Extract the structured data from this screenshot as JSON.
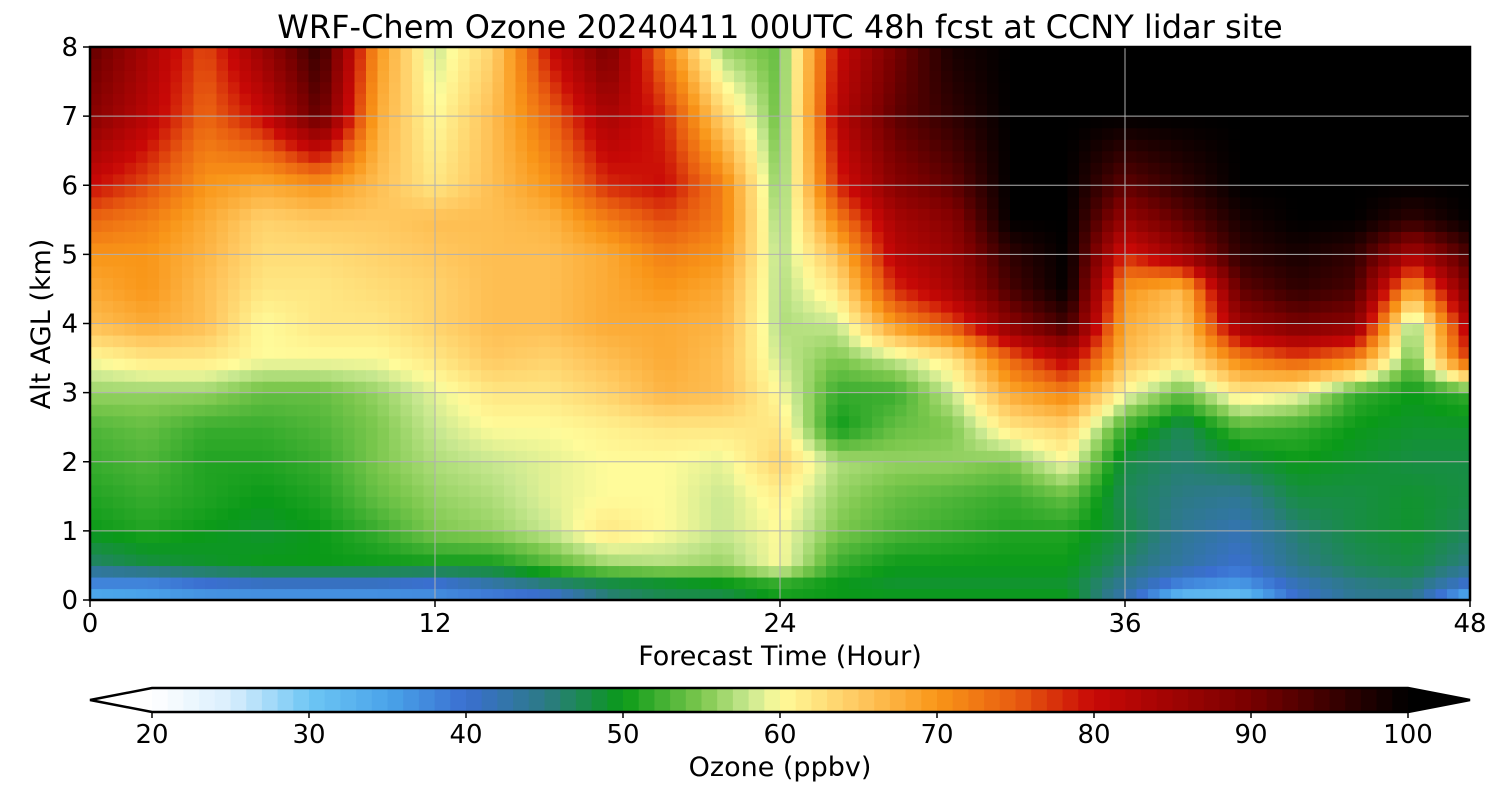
{
  "chart_data": {
    "type": "heatmap",
    "title": "WRF-Chem Ozone  20240411 00UTC 48h fcst at CCNY lidar site",
    "xlabel": "Forecast Time (Hour)",
    "ylabel": "Alt AGL (km)",
    "xlim": [
      0,
      48
    ],
    "ylim": [
      0,
      8
    ],
    "xticks": [
      "0",
      "12",
      "24",
      "36",
      "48"
    ],
    "yticks": [
      "0",
      "1",
      "2",
      "3",
      "4",
      "5",
      "6",
      "7",
      "8"
    ],
    "grid": true,
    "x": [
      0,
      2,
      4,
      6,
      8,
      10,
      12,
      14,
      16,
      18,
      20,
      22,
      24,
      26,
      28,
      30,
      32,
      34,
      36,
      38,
      40,
      42,
      44,
      46,
      48
    ],
    "y": [
      0,
      0.25,
      0.5,
      1,
      1.5,
      2,
      2.5,
      3,
      3.5,
      4,
      4.5,
      5,
      5.5,
      6,
      7,
      8
    ],
    "z": [
      [
        33,
        34,
        35,
        35,
        35,
        35,
        36,
        37,
        38,
        45,
        47,
        47,
        50,
        50,
        50,
        50,
        50,
        50,
        42,
        30,
        30,
        40,
        44,
        44,
        32
      ],
      [
        38,
        38,
        40,
        41,
        41,
        41,
        40,
        43,
        46,
        48,
        49,
        50,
        52,
        50,
        49,
        49,
        49,
        49,
        44,
        38,
        36,
        42,
        45,
        46,
        40
      ],
      [
        46,
        48,
        49,
        50,
        50,
        50,
        50,
        50,
        53,
        56,
        57,
        56,
        60,
        52,
        50,
        50,
        50,
        50,
        46,
        43,
        40,
        45,
        47,
        48,
        45
      ],
      [
        50,
        51,
        50,
        49,
        50,
        52,
        55,
        56,
        58,
        62,
        60,
        58,
        60,
        55,
        53,
        52,
        51,
        51,
        48,
        44,
        42,
        46,
        48,
        49,
        47
      ],
      [
        51,
        52,
        51,
        50,
        51,
        54,
        56,
        57,
        59,
        60,
        60,
        58,
        61,
        56,
        54,
        53,
        52,
        54,
        47,
        45,
        44,
        48,
        48,
        49,
        48
      ],
      [
        52,
        53,
        51,
        51,
        52,
        55,
        57,
        58,
        59,
        60,
        60,
        59,
        64,
        57,
        56,
        56,
        55,
        60,
        48,
        46,
        48,
        50,
        49,
        48,
        48
      ],
      [
        53,
        54,
        52,
        52,
        53,
        55,
        58,
        60,
        60,
        61,
        62,
        62,
        62,
        50,
        54,
        55,
        62,
        64,
        52,
        47,
        53,
        52,
        50,
        49,
        49
      ],
      [
        56,
        56,
        56,
        54,
        54,
        56,
        59,
        62,
        62,
        64,
        67,
        66,
        60,
        52,
        52,
        58,
        68,
        72,
        60,
        54,
        62,
        60,
        52,
        50,
        52
      ],
      [
        60,
        62,
        62,
        60,
        60,
        60,
        62,
        65,
        64,
        66,
        68,
        66,
        58,
        55,
        58,
        62,
        74,
        82,
        66,
        62,
        72,
        76,
        72,
        54,
        78
      ],
      [
        66,
        68,
        66,
        60,
        62,
        62,
        64,
        66,
        66,
        68,
        68,
        67,
        57,
        58,
        70,
        76,
        88,
        95,
        68,
        64,
        86,
        90,
        88,
        55,
        84
      ],
      [
        68,
        70,
        66,
        62,
        62,
        63,
        64,
        66,
        66,
        68,
        70,
        68,
        57,
        62,
        78,
        84,
        94,
        100,
        70,
        66,
        92,
        96,
        94,
        68,
        90
      ],
      [
        70,
        70,
        67,
        63,
        63,
        64,
        65,
        66,
        66,
        68,
        72,
        70,
        57,
        66,
        82,
        86,
        96,
        100,
        78,
        86,
        96,
        98,
        96,
        84,
        94
      ],
      [
        74,
        72,
        68,
        64,
        65,
        65,
        66,
        66,
        67,
        72,
        76,
        72,
        56,
        72,
        84,
        88,
        100,
        100,
        86,
        92,
        98,
        100,
        100,
        96,
        100
      ],
      [
        80,
        76,
        70,
        68,
        70,
        66,
        62,
        66,
        70,
        78,
        80,
        72,
        55,
        78,
        88,
        92,
        100,
        100,
        92,
        96,
        100,
        100,
        100,
        100,
        100
      ],
      [
        88,
        82,
        74,
        80,
        92,
        68,
        60,
        66,
        74,
        84,
        78,
        64,
        54,
        82,
        92,
        96,
        100,
        100,
        100,
        100,
        100,
        100,
        100,
        100,
        100
      ],
      [
        92,
        84,
        76,
        86,
        96,
        70,
        58,
        64,
        80,
        90,
        72,
        56,
        54,
        80,
        90,
        98,
        100,
        100,
        100,
        100,
        100,
        100,
        100,
        100,
        100
      ]
    ],
    "colorbar": {
      "label": "Ozone  (ppbv)",
      "min": 20,
      "max": 100,
      "ticks": [
        "20",
        "30",
        "40",
        "50",
        "60",
        "70",
        "80",
        "90",
        "100"
      ],
      "extend": "both"
    },
    "colormap": [
      {
        "v": 20,
        "c": "#ffffff"
      },
      {
        "v": 25,
        "c": "#d9eefd"
      },
      {
        "v": 30,
        "c": "#6ec6f4"
      },
      {
        "v": 35,
        "c": "#4aa4ea"
      },
      {
        "v": 40,
        "c": "#3a6fd0"
      },
      {
        "v": 45,
        "c": "#2c7a86"
      },
      {
        "v": 50,
        "c": "#0a9a18"
      },
      {
        "v": 55,
        "c": "#7dc84e"
      },
      {
        "v": 58,
        "c": "#c8e890"
      },
      {
        "v": 60,
        "c": "#fffb9a"
      },
      {
        "v": 65,
        "c": "#ffc860"
      },
      {
        "v": 70,
        "c": "#f99618"
      },
      {
        "v": 75,
        "c": "#e85c10"
      },
      {
        "v": 80,
        "c": "#c80806"
      },
      {
        "v": 90,
        "c": "#780000"
      },
      {
        "v": 100,
        "c": "#000000"
      }
    ]
  }
}
